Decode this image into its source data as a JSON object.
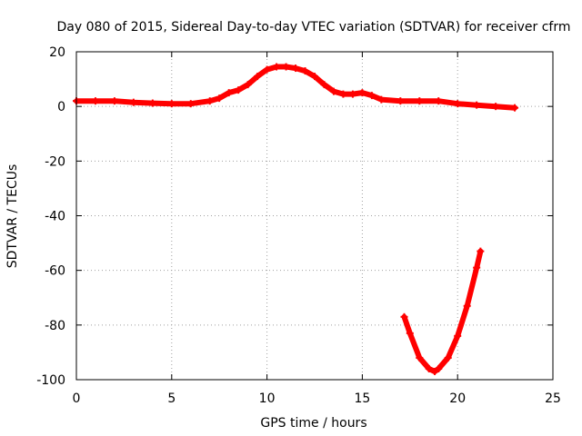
{
  "chart_data": {
    "type": "line",
    "title": "Day 080 of 2015, Sidereal Day-to-day VTEC variation (SDTVAR) for receiver cfrm",
    "xlabel": "GPS time / hours",
    "ylabel": "SDTVAR / TECUs",
    "xlim": [
      0,
      25
    ],
    "ylim": [
      -100,
      20
    ],
    "xticks": [
      0,
      5,
      10,
      15,
      20,
      25
    ],
    "yticks": [
      -100,
      -80,
      -60,
      -40,
      -20,
      0,
      20
    ],
    "grid": true,
    "series": [
      {
        "name": "SDTVAR (arc 1)",
        "color": "#ff0000",
        "x": [
          0,
          1,
          2,
          3,
          4,
          5,
          6,
          7,
          7.5,
          8,
          8.5,
          9,
          9.5,
          10,
          10.5,
          11,
          11.5,
          12,
          12.5,
          13,
          13.5,
          14,
          14.5,
          15,
          15.5,
          16,
          17,
          18,
          19,
          20,
          21,
          22,
          23
        ],
        "y": [
          2,
          2,
          2,
          1.5,
          1.2,
          1,
          1,
          2,
          3,
          5,
          6,
          8,
          11,
          13.5,
          14.5,
          14.5,
          14,
          13,
          11,
          8,
          5.5,
          4.5,
          4.5,
          5,
          4,
          2.5,
          2,
          2,
          2,
          1,
          0.5,
          0,
          -0.5
        ]
      },
      {
        "name": "SDTVAR (arc 2)",
        "color": "#ff0000",
        "x": [
          17.2,
          17.5,
          18,
          18.5,
          18.8,
          19,
          19.5,
          20,
          20.5,
          21,
          21.2
        ],
        "y": [
          -77,
          -83,
          -92,
          -96,
          -97,
          -96,
          -92,
          -84,
          -73,
          -59,
          -53
        ]
      }
    ]
  }
}
